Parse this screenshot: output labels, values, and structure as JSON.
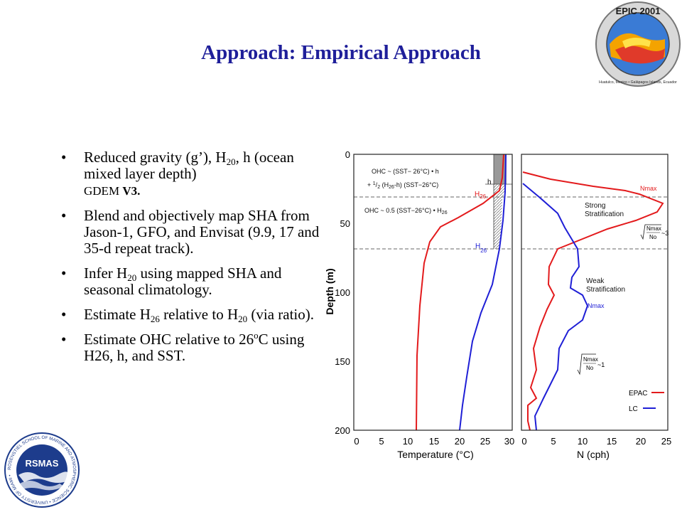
{
  "slide": {
    "title": "Approach: Empirical Approach"
  },
  "bullets": [
    {
      "text_a": "Reduced gravity (g’), H",
      "sub_a": "20",
      "text_b": ", h (ocean mixed layer depth)",
      "line2_small": "GDEM ",
      "line2_bold": "V3."
    },
    {
      "text": "Blend and objectively map SHA from Jason-1, GFO, and Envisat (9.9, 17 and 35-d repeat track)."
    },
    {
      "text_a": "Infer H",
      "sub_a": "20",
      "text_b": " using mapped SHA and seasonal climatology."
    },
    {
      "text_a": "Estimate H",
      "sub_a": "26",
      "text_b": " relative to H",
      "sub_b": "20",
      "text_c": " (via ratio)."
    },
    {
      "text_a": "Estimate OHC relative to 26",
      "sup_a": "o",
      "text_b": "C using H26, h, and SST."
    }
  ],
  "logos": {
    "epic": {
      "line1": "EPIC 2001",
      "line2": "Huatulco, Mexico • Galápagos Islands, Ecuador"
    },
    "rsmas": {
      "center": "RSMAS",
      "ring": "ROSENSTIEL SCHOOL OF MARINE AND ATMOSPHERIC SCIENCE • UNIVERSITY OF MIAMI •"
    }
  },
  "figure": {
    "colors": {
      "epac": "#e31a1c",
      "lc": "#1f1fd6",
      "shade": "#888888"
    },
    "y_axis": {
      "label": "Depth (m)",
      "ticks": [
        "0",
        "50",
        "100",
        "150",
        "200"
      ],
      "range": [
        0,
        200
      ]
    },
    "left_panel": {
      "xlabel": "Temperature (°C)",
      "ticks": [
        "0",
        "5",
        "10",
        "15",
        "20",
        "25",
        "30"
      ],
      "range": [
        0,
        30
      ],
      "ann1": "OHC ~ (SST− 26°C) • h",
      "ann2a": "+ ",
      "ann2b": "1",
      "ann2c": "/",
      "ann2d": "2",
      "ann2e": " (H",
      "ann2f": "26",
      "ann2g": "-h) (SST−26°C)",
      "ann3a": "OHC ~ 0.5 (SST−26°C) • H",
      "ann3b": "26",
      "h_label": "h",
      "h26_red_a": "H",
      "h26_red_b": "26.",
      "h26_blue_a": "H",
      "h26_blue_b": "26"
    },
    "right_panel": {
      "xlabel": "N (cph)",
      "ticks": [
        "0",
        "5",
        "10",
        "15",
        "20",
        "25"
      ],
      "range": [
        0,
        25
      ],
      "nmax_red": "Nmax",
      "strong_1": "Strong",
      "strong_2": "Stratification",
      "ratio_num": "Nmax",
      "ratio_den": "No",
      "ratio_strong": "~3",
      "weak_1": "Weak",
      "weak_2": "Stratification",
      "nmax_blue": "Nmax",
      "ratio_weak": "~1",
      "legend": [
        {
          "name": "EPAC",
          "color": "#e31a1c"
        },
        {
          "name": "LC",
          "color": "#1f1fd6"
        }
      ]
    },
    "dashed_depths": [
      31,
      69
    ]
  }
}
